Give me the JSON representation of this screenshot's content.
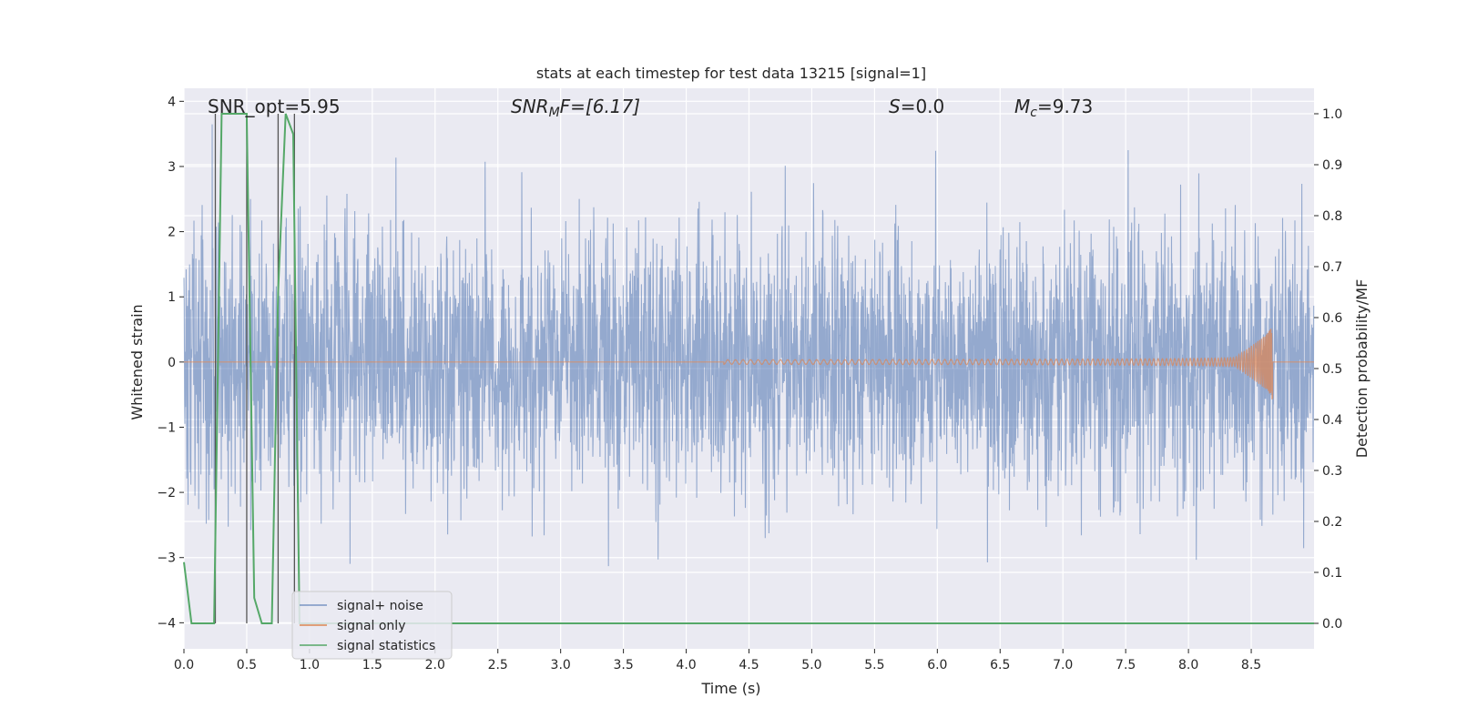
{
  "chart_data": {
    "type": "line",
    "title": "stats at each timestep for test data 13215 [signal=1]",
    "xlabel": "Time (s)",
    "ylabel_left": "Whitened strain",
    "ylabel_right": "Detection probability/MF",
    "xlim": [
      0.0,
      9.0
    ],
    "ylim_left": [
      -4.4,
      4.2
    ],
    "ylim_right": [
      -0.05,
      1.05
    ],
    "x_ticks": [
      0.0,
      0.5,
      1.0,
      1.5,
      2.0,
      2.5,
      3.0,
      3.5,
      4.0,
      4.5,
      5.0,
      5.5,
      6.0,
      6.5,
      7.0,
      7.5,
      8.0,
      8.5
    ],
    "x_tick_labels": [
      "0.0",
      "0.5",
      "1.0",
      "1.5",
      "2.0",
      "2.5",
      "3.0",
      "3.5",
      "4.0",
      "4.5",
      "5.0",
      "5.5",
      "6.0",
      "6.5",
      "7.0",
      "7.5",
      "8.0",
      "8.5"
    ],
    "y_ticks_left": [
      4,
      3,
      2,
      1,
      0,
      -1,
      -2,
      -3,
      -4
    ],
    "y_tick_labels_left": [
      "4",
      "3",
      "2",
      "1",
      "0",
      "−1",
      "−2",
      "−3",
      "−4"
    ],
    "y_ticks_right": [
      1.0,
      0.9,
      0.8,
      0.7,
      0.6,
      0.5,
      0.4,
      0.3,
      0.2,
      0.1,
      0.0
    ],
    "y_tick_labels_right": [
      "1.0",
      "0.9",
      "0.8",
      "0.7",
      "0.6",
      "0.5",
      "0.4",
      "0.3",
      "0.2",
      "0.1",
      "0.0"
    ],
    "annotations": {
      "snr_opt": "SNR_opt=5.95",
      "snr_mf_base": "SNR",
      "snr_mf_sub": "M",
      "snr_mf_tail": "F=[6.17]",
      "s_var": "S",
      "s_tail": "=0.0",
      "mc_var": "M",
      "mc_sub": "c",
      "mc_tail": "=9.73"
    },
    "series": [
      {
        "name": "signal+ noise",
        "axis": "left",
        "color": "#4c72b0",
        "description": "whitened noise, roughly unit variance, peaks up to about 3.8 and down to about -3.6",
        "amplitude_sigma": 1.0
      },
      {
        "name": "signal only",
        "axis": "left",
        "color": "#dd8452",
        "description": "chirp starting near 4.3 s, amplitude grows to about 0.9 at merger around 8.67 s",
        "chirp_start": 4.3,
        "merger_time": 8.67,
        "peak_amplitude": 0.92
      },
      {
        "name": "signal statistics",
        "axis": "right",
        "color": "#55a868",
        "x": [
          0.0,
          0.06,
          0.1,
          0.2,
          0.24,
          0.3,
          0.37,
          0.48,
          0.5,
          0.56,
          0.62,
          0.7,
          0.75,
          0.81,
          0.87,
          0.92,
          0.95,
          1.0,
          2.0,
          3.0,
          4.0,
          5.0,
          6.0,
          7.0,
          8.0,
          9.0
        ],
        "y": [
          0.12,
          0.0,
          0.0,
          0.0,
          0.0,
          1.0,
          1.0,
          1.0,
          1.0,
          0.05,
          0.0,
          0.0,
          0.65,
          1.0,
          0.96,
          0.0,
          0.0,
          0.0,
          0.0,
          0.0,
          0.0,
          0.0,
          0.0,
          0.0,
          0.0,
          0.0
        ]
      }
    ],
    "vlines": [
      0.25,
      0.5,
      0.75,
      0.88
    ],
    "vline_color": "#555555",
    "legend": {
      "placement": "lower-left",
      "entries": [
        "signal+ noise",
        "signal only",
        "signal statistics"
      ]
    },
    "grid": true,
    "background": "#eaeaf2"
  }
}
